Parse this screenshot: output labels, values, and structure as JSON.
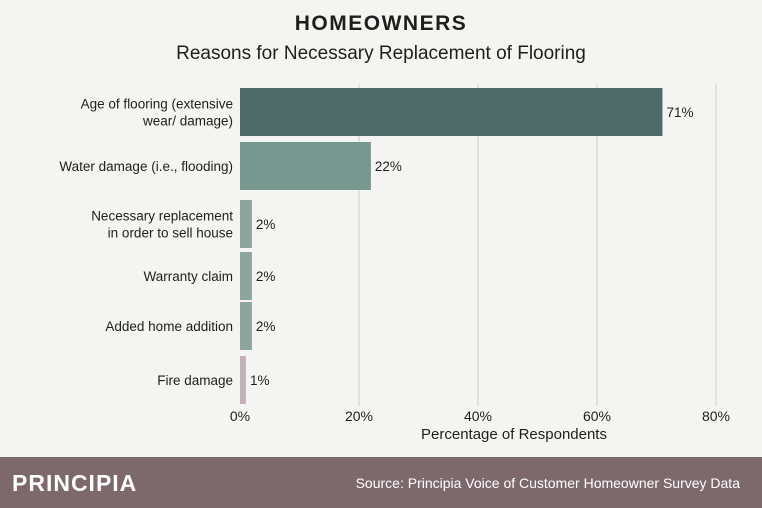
{
  "header": {
    "title": "HOMEOWNERS",
    "subtitle": "Reasons for Necessary Replacement of Flooring"
  },
  "footer": {
    "brand": "PRINCIPIA",
    "source": "Source: Principia Voice of Customer Homeowner Survey Data"
  },
  "chart_data": {
    "type": "bar",
    "orientation": "horizontal",
    "categories": [
      [
        "Age of flooring (extensive",
        "wear/ damage)"
      ],
      [
        "Water damage (i.e., flooding)"
      ],
      [
        "Necessary replacement",
        "in order to sell house"
      ],
      [
        "Warranty claim"
      ],
      [
        "Added home addition"
      ],
      [
        "Fire damage"
      ]
    ],
    "values": [
      71,
      22,
      2,
      2,
      2,
      1
    ],
    "value_labels": [
      "71%",
      "22%",
      "2%",
      "2%",
      "2%",
      "1%"
    ],
    "bar_colors": [
      "#4f6b69",
      "#77988f",
      "#8ea59f",
      "#8ea59f",
      "#8ea59f",
      "#c2b3b9"
    ],
    "xlim": [
      0,
      80
    ],
    "xticks": [
      0,
      20,
      40,
      60,
      80
    ],
    "xtick_labels": [
      "0%",
      "20%",
      "40%",
      "60%",
      "80%"
    ],
    "xlabel": "Percentage of Respondents",
    "ylabel": "",
    "grid": "vertical"
  }
}
